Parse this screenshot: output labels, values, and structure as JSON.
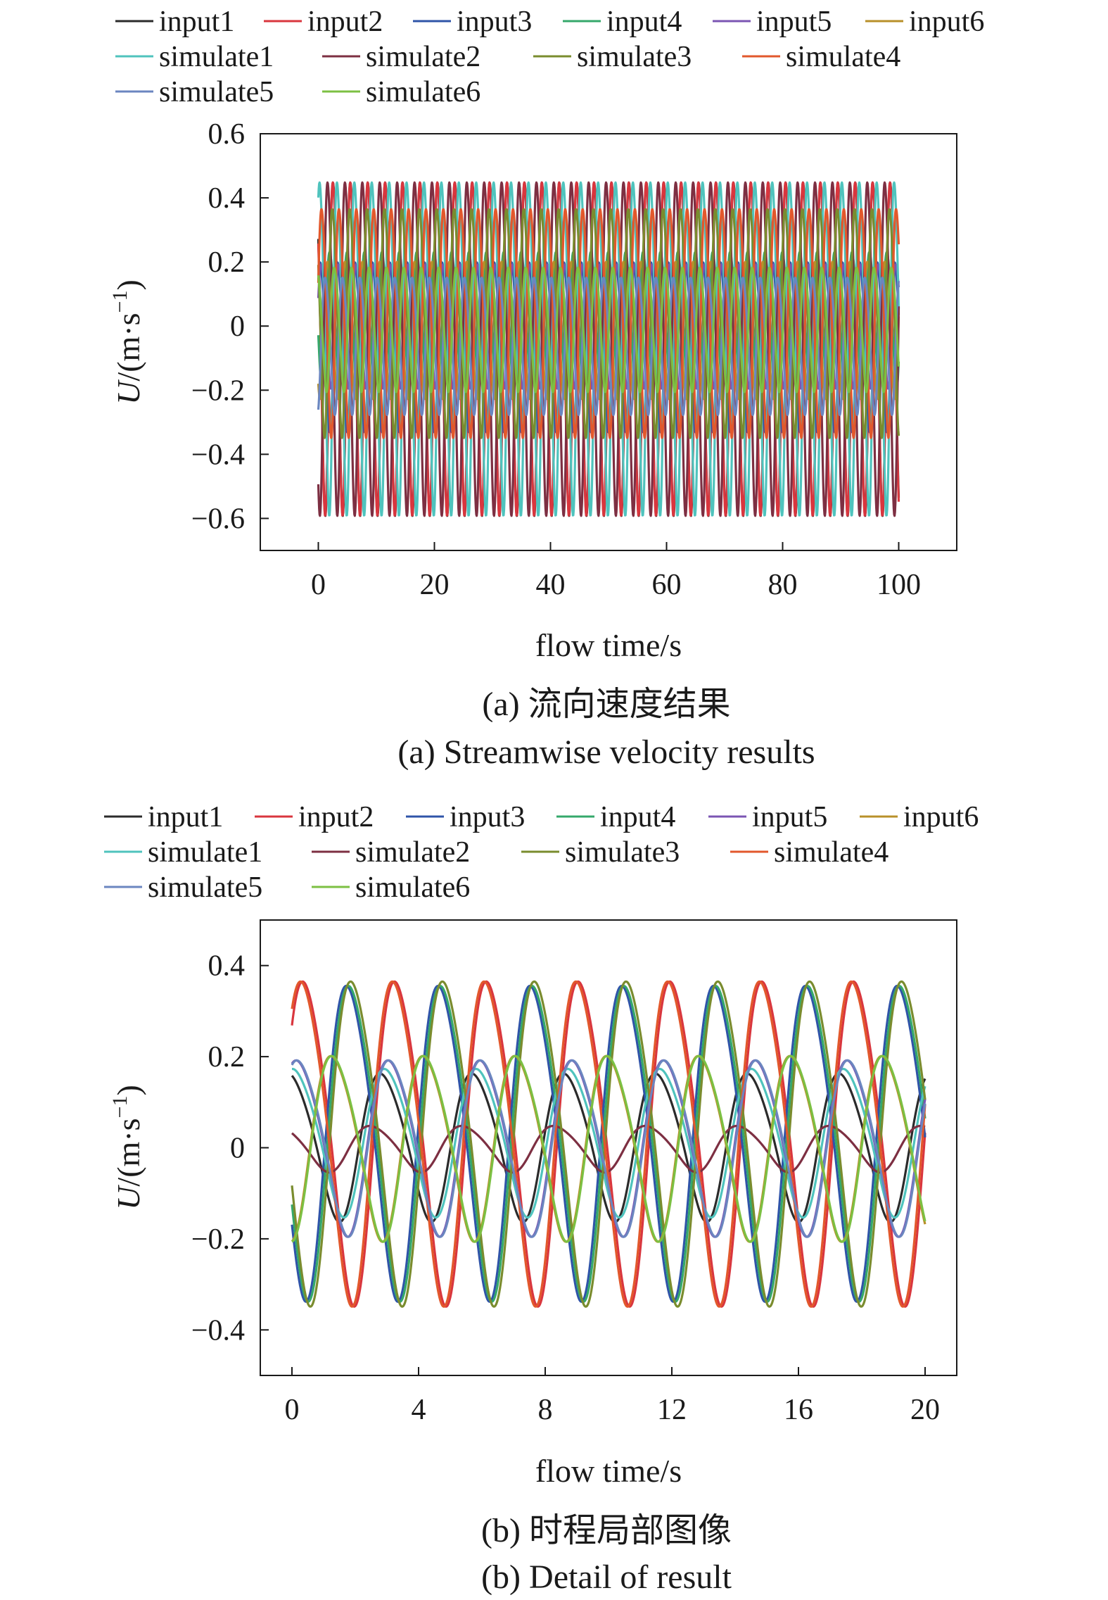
{
  "chart_data": [
    {
      "type": "line",
      "caption_cn": "(a) 流向速度结果",
      "caption_en": "(a) Streamwise velocity results",
      "xlabel": "flow time/s",
      "ylabel_prefix": "U",
      "ylabel_unit": "/(m·s",
      "ylabel_sup": "−1",
      "ylabel_close": ")",
      "xlim": [
        -10,
        110
      ],
      "ylim": [
        -0.7,
        0.6
      ],
      "xticks": [
        0,
        20,
        40,
        60,
        80,
        100
      ],
      "xtick_labels": [
        "0",
        "20",
        "40",
        "60",
        "80",
        "100"
      ],
      "yticks": [
        -0.6,
        -0.4,
        -0.2,
        0,
        0.2,
        0.4,
        0.6
      ],
      "ytick_labels": [
        "−0.6",
        "−0.4",
        "−0.2",
        "0",
        "0.2",
        "0.4",
        "0.6"
      ],
      "legend_position": "top",
      "x_range": [
        0,
        100
      ],
      "period_s": 3.0,
      "series": [
        {
          "name": "input1",
          "color": "#2b2b2b",
          "mean": -0.04,
          "amp": 0.51,
          "phase": 2.35
        },
        {
          "name": "input2",
          "color": "#d9363e",
          "mean": -0.04,
          "amp": 0.51,
          "phase": 2.4
        },
        {
          "name": "input3",
          "color": "#2f54a8",
          "mean": -0.05,
          "amp": 0.26,
          "phase": 0.7
        },
        {
          "name": "input4",
          "color": "#35a86b",
          "mean": 0.03,
          "amp": 0.21,
          "phase": 3.55
        },
        {
          "name": "input5",
          "color": "#7b55b3",
          "mean": 0.01,
          "amp": 0.19,
          "phase": 0.3
        },
        {
          "name": "input6",
          "color": "#b8902a",
          "mean": 0.0,
          "amp": 0.21,
          "phase": 4.25
        },
        {
          "name": "simulate1",
          "color": "#4fc3bd",
          "mean": -0.04,
          "amp": 0.51,
          "phase": 0.9
        },
        {
          "name": "simulate2",
          "color": "#7d2f42",
          "mean": -0.04,
          "amp": 0.51,
          "phase": 4.3
        },
        {
          "name": "simulate3",
          "color": "#7a8c2e",
          "mean": 0.03,
          "amp": 0.35,
          "phase": 2.6
        },
        {
          "name": "simulate4",
          "color": "#e2582c",
          "mean": 0.03,
          "amp": 0.35,
          "phase": 0.2
        },
        {
          "name": "simulate5",
          "color": "#6b86c0",
          "mean": -0.05,
          "amp": 0.21,
          "phase": 5.2
        },
        {
          "name": "simulate6",
          "color": "#7cc043",
          "mean": 0.0,
          "amp": 0.19,
          "phase": 1.9
        }
      ]
    },
    {
      "type": "line",
      "caption_cn": "(b) 时程局部图像",
      "caption_en": "(b) Detail of result",
      "xlabel": "flow time/s",
      "ylabel_prefix": "U",
      "ylabel_unit": "/(m·s",
      "ylabel_sup": "−1",
      "ylabel_close": ")",
      "xlim": [
        -1,
        21
      ],
      "ylim": [
        -0.5,
        0.5
      ],
      "xticks": [
        0,
        4,
        8,
        12,
        16,
        20
      ],
      "xtick_labels": [
        "0",
        "4",
        "8",
        "12",
        "16",
        "20"
      ],
      "yticks": [
        -0.4,
        -0.2,
        0,
        0.2,
        0.4
      ],
      "ytick_labels": [
        "−0.4",
        "−0.2",
        "0",
        "0.2",
        "0.4"
      ],
      "legend_position": "top",
      "x_range": [
        0,
        20
      ],
      "period_s": 2.9,
      "series": [
        {
          "name": "input1",
          "color": "#2b2b2b",
          "mean": 0.01,
          "amp": 0.16,
          "phase": 1.6
        },
        {
          "name": "input2",
          "color": "#d9363e",
          "mean": 0.03,
          "amp": 0.35,
          "phase": 0.6
        },
        {
          "name": "input3",
          "color": "#2f54a8",
          "mean": 0.03,
          "amp": 0.34,
          "phase": 3.9
        },
        {
          "name": "input4",
          "color": "#35a86b",
          "mean": 0.03,
          "amp": 0.34,
          "phase": 3.75
        },
        {
          "name": "input5",
          "color": "#7b55b3",
          "mean": 0.01,
          "amp": 0.19,
          "phase": 1.05
        },
        {
          "name": "input6",
          "color": "#b8902a",
          "mean": 0.01,
          "amp": 0.2,
          "phase": 4.95
        },
        {
          "name": "simulate1",
          "color": "#4fc3bd",
          "mean": 0.02,
          "amp": 0.16,
          "phase": 1.3
        },
        {
          "name": "simulate2",
          "color": "#7d2f42",
          "mean": 0.0,
          "amp": 0.05,
          "phase": 2.3
        },
        {
          "name": "simulate3",
          "color": "#7a8c2e",
          "mean": 0.03,
          "amp": 0.35,
          "phase": 3.6
        },
        {
          "name": "simulate4",
          "color": "#e2582c",
          "mean": 0.03,
          "amp": 0.35,
          "phase": 0.75
        },
        {
          "name": "simulate5",
          "color": "#6b86c0",
          "mean": 0.01,
          "amp": 0.19,
          "phase": 1.0
        },
        {
          "name": "simulate6",
          "color": "#7cc043",
          "mean": 0.01,
          "amp": 0.2,
          "phase": 4.9
        }
      ]
    }
  ]
}
